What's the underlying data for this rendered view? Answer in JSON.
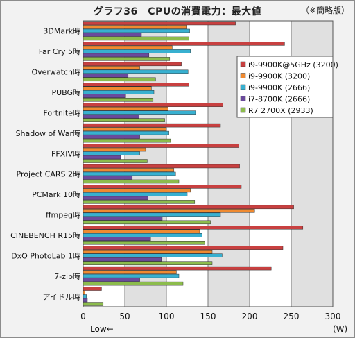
{
  "header": {
    "title": "グラフ36　CPUの消費電力：最大値",
    "note": "（※簡略版）"
  },
  "colors": {
    "i9_9900K_5GHz": "#c84040",
    "i9_9900K": "#f08a30",
    "i9_9900": "#38b0d0",
    "i7_8700K": "#6a4a9c",
    "R7_2700X": "#8cbc4c",
    "plot_bg": "#ffffff",
    "band": "#e0e0e0",
    "grid": "#7a7a7a"
  },
  "chart_data": {
    "type": "bar",
    "orientation": "horizontal",
    "title": "グラフ36　CPUの消費電力：最大値",
    "categories": [
      "3DMark時",
      "Far Cry 5時",
      "Overwatch時",
      "PUBG時",
      "Fortnite時",
      "Shadow of War時",
      "FFXIV時",
      "Project CARS 2時",
      "PCMark 10時",
      "ffmpeg時",
      "CINEBENCH R15時",
      "DxO PhotoLab 1時",
      "7-zip時",
      "アイドル時"
    ],
    "series": [
      {
        "name": "i9-9900K@5GHz (3200)",
        "color": "#c84040",
        "values": [
          183,
          242,
          118,
          127,
          168,
          165,
          187,
          188,
          190,
          253,
          264,
          240,
          226,
          22
        ]
      },
      {
        "name": "i9-9900K (3200)",
        "color": "#f08a30",
        "values": [
          124,
          107,
          68,
          82,
          102,
          100,
          75,
          109,
          129,
          206,
          140,
          155,
          112,
          2
        ]
      },
      {
        "name": "i9-9900K (2666)",
        "color": "#38b0d0",
        "values": [
          128,
          129,
          126,
          85,
          135,
          103,
          68,
          111,
          125,
          165,
          143,
          167,
          115,
          4
        ]
      },
      {
        "name": "i7-8700K (2666)",
        "color": "#6a4a9c",
        "values": [
          70,
          79,
          54,
          51,
          67,
          68,
          45,
          59,
          78,
          95,
          81,
          94,
          68,
          5
        ]
      },
      {
        "name": "R7 2700X (2933)",
        "color": "#8cbc4c",
        "values": [
          127,
          104,
          87,
          84,
          98,
          105,
          77,
          115,
          134,
          153,
          146,
          155,
          120,
          24
        ]
      }
    ],
    "xlim": [
      0,
      300
    ],
    "xticks": [
      "0",
      "50",
      "100",
      "150",
      "200",
      "250",
      "300"
    ],
    "xlabel": "Low←",
    "unit": "(W)",
    "grid": true,
    "legend_position": "top-right"
  }
}
